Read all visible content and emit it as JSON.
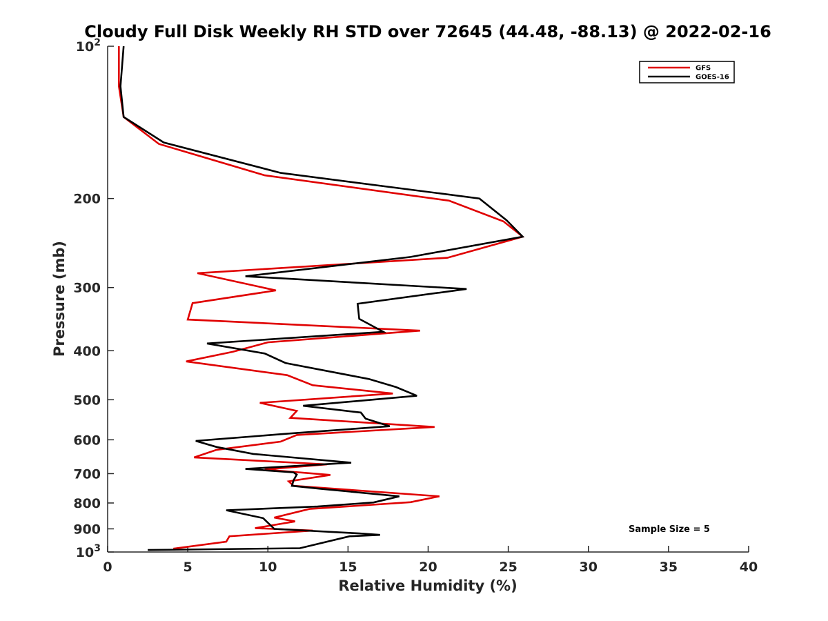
{
  "chart_data": {
    "type": "line",
    "title": "Cloudy Full Disk Weekly RH STD over 72645 (44.48, -88.13) @ 2022-02-16",
    "xlabel": "Relative Humidity (%)",
    "ylabel": "Pressure (mb)",
    "xlim": [
      0,
      40
    ],
    "ylim": [
      100,
      1000
    ],
    "y_scale": "log",
    "y_reversed": true,
    "x_ticks": [
      "0",
      "5",
      "10",
      "15",
      "20",
      "25",
      "30",
      "35",
      "40"
    ],
    "y_ticks": [
      {
        "value": 100,
        "label": "10",
        "sup": "2"
      },
      {
        "value": 200,
        "label": "200"
      },
      {
        "value": 300,
        "label": "300"
      },
      {
        "value": 400,
        "label": "400"
      },
      {
        "value": 500,
        "label": "500"
      },
      {
        "value": 600,
        "label": "600"
      },
      {
        "value": 700,
        "label": "700"
      },
      {
        "value": 800,
        "label": "800"
      },
      {
        "value": 900,
        "label": "900"
      },
      {
        "value": 1000,
        "label": "10",
        "sup": "3"
      }
    ],
    "grid": false,
    "legend_position": "top-right",
    "annotation": "Sample Size = 5",
    "series": [
      {
        "name": "GFS",
        "color": "#e00000",
        "points": [
          [
            0.7,
            100
          ],
          [
            0.7,
            120
          ],
          [
            1.0,
            138
          ],
          [
            3.2,
            156
          ],
          [
            9.8,
            180
          ],
          [
            21.3,
            202
          ],
          [
            24.7,
            222
          ],
          [
            25.9,
            238
          ],
          [
            21.2,
            262
          ],
          [
            5.6,
            281
          ],
          [
            10.5,
            304
          ],
          [
            5.3,
            322
          ],
          [
            5.0,
            347
          ],
          [
            19.5,
            365
          ],
          [
            10.0,
            385
          ],
          [
            7.8,
            402
          ],
          [
            4.9,
            420
          ],
          [
            11.2,
            447
          ],
          [
            12.8,
            468
          ],
          [
            17.8,
            486
          ],
          [
            9.5,
            507
          ],
          [
            11.8,
            526
          ],
          [
            11.4,
            543
          ],
          [
            20.4,
            566
          ],
          [
            11.8,
            587
          ],
          [
            10.8,
            605
          ],
          [
            6.8,
            628
          ],
          [
            5.4,
            650
          ],
          [
            13.7,
            671
          ],
          [
            9.8,
            687
          ],
          [
            13.9,
            704
          ],
          [
            11.3,
            725
          ],
          [
            11.6,
            740
          ],
          [
            20.7,
            776
          ],
          [
            18.9,
            797
          ],
          [
            12.6,
            822
          ],
          [
            10.4,
            855
          ],
          [
            11.7,
            870
          ],
          [
            9.2,
            897
          ],
          [
            12.8,
            907
          ],
          [
            7.6,
            931
          ],
          [
            7.4,
            954
          ],
          [
            4.1,
            985
          ]
        ]
      },
      {
        "name": "GOES-16",
        "color": "#000000",
        "points": [
          [
            1.0,
            100
          ],
          [
            0.8,
            120
          ],
          [
            1.0,
            138
          ],
          [
            3.5,
            155
          ],
          [
            10.8,
            178
          ],
          [
            23.2,
            200
          ],
          [
            24.9,
            221
          ],
          [
            25.9,
            238
          ],
          [
            18.9,
            261
          ],
          [
            8.6,
            285
          ],
          [
            22.4,
            302
          ],
          [
            15.6,
            323
          ],
          [
            15.7,
            346
          ],
          [
            17.2,
            367
          ],
          [
            6.2,
            387
          ],
          [
            9.8,
            405
          ],
          [
            11.1,
            423
          ],
          [
            16.3,
            455
          ],
          [
            18.0,
            472
          ],
          [
            19.3,
            491
          ],
          [
            12.2,
            514
          ],
          [
            15.8,
            530
          ],
          [
            16.1,
            545
          ],
          [
            17.6,
            564
          ],
          [
            11.4,
            583
          ],
          [
            5.5,
            603
          ],
          [
            6.8,
            620
          ],
          [
            9.1,
            640
          ],
          [
            15.2,
            666
          ],
          [
            8.6,
            685
          ],
          [
            11.6,
            696
          ],
          [
            11.8,
            703
          ],
          [
            11.6,
            722
          ],
          [
            11.5,
            740
          ],
          [
            13.3,
            750
          ],
          [
            18.2,
            776
          ],
          [
            16.6,
            798
          ],
          [
            13.1,
            813
          ],
          [
            7.4,
            827
          ],
          [
            9.7,
            857
          ],
          [
            10.4,
            900
          ],
          [
            15.7,
            919
          ],
          [
            17.0,
            925
          ],
          [
            15.1,
            931
          ],
          [
            12.0,
            983
          ],
          [
            2.5,
            991
          ]
        ]
      }
    ]
  }
}
